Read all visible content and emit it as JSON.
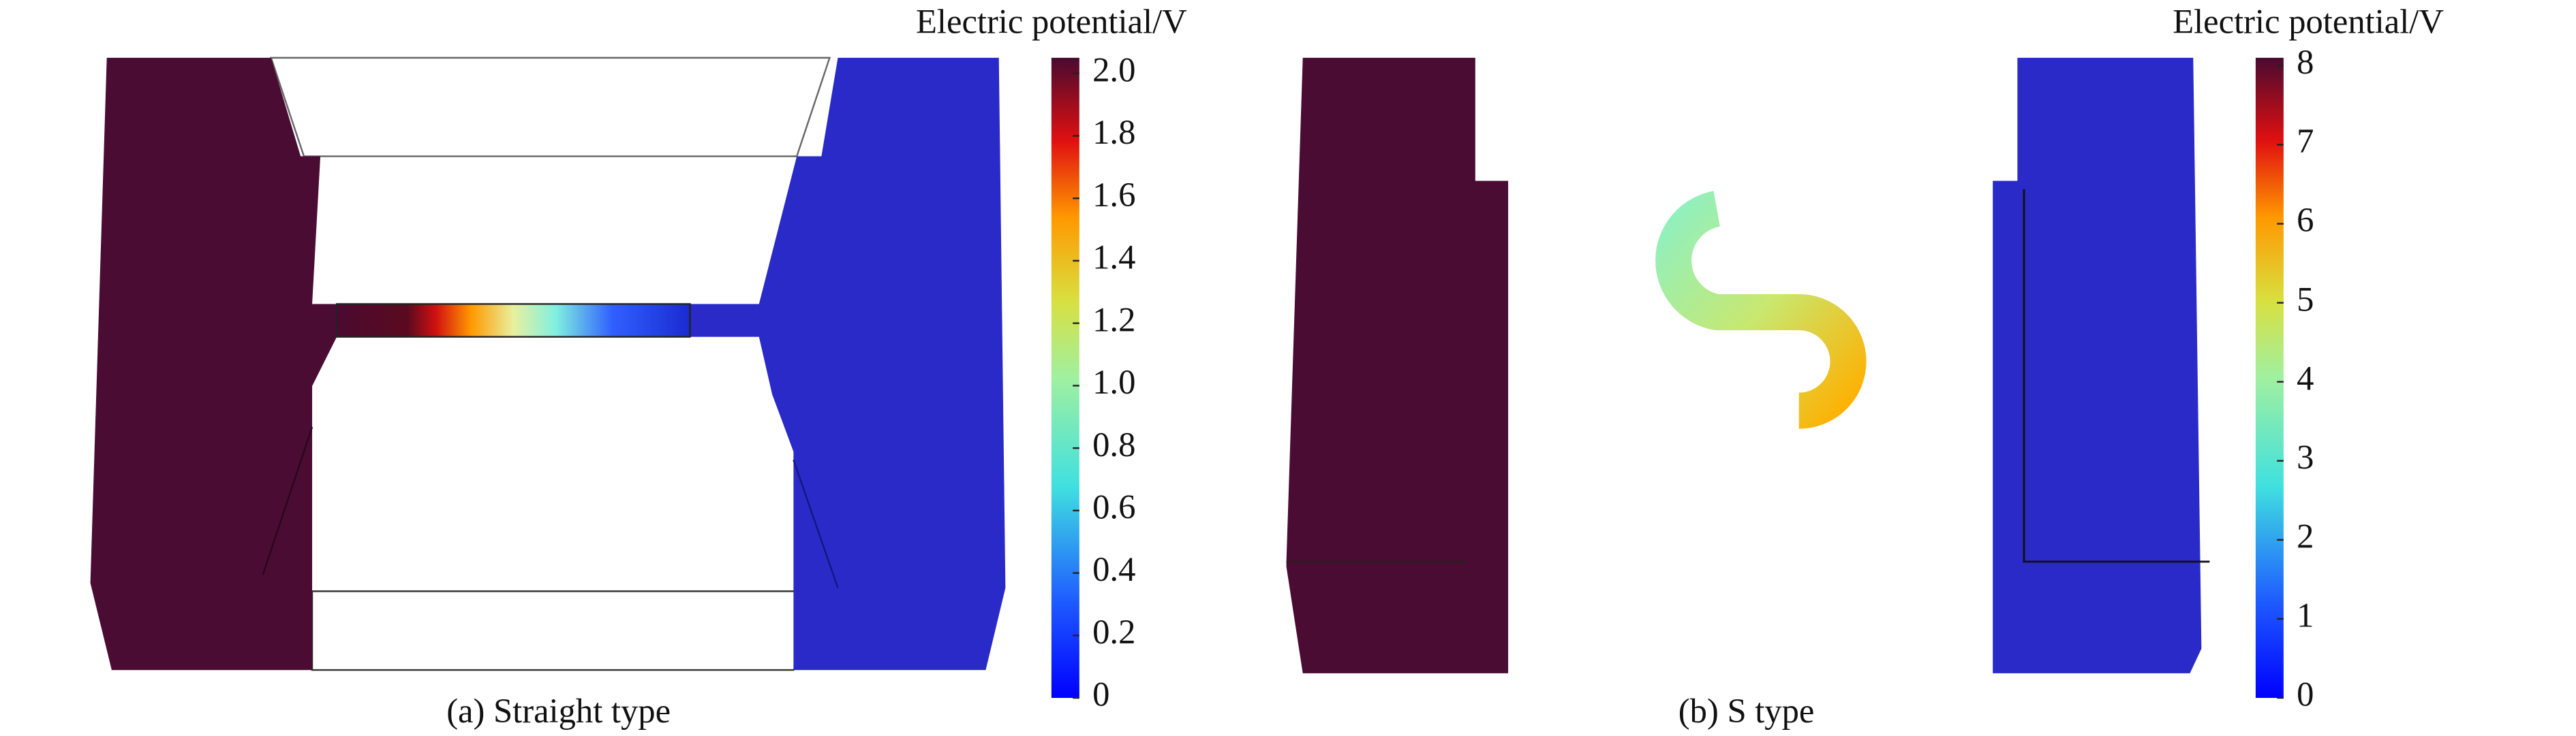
{
  "panels": [
    {
      "caption": "(a) Straight type",
      "colorbar": {
        "title": "Electric potential/V",
        "lim": [
          0,
          2.05
        ],
        "ticks": [
          0,
          0.2,
          0.4,
          0.6,
          0.8,
          {
            "value": 1,
            "label": "1.0"
          },
          1.2,
          1.4,
          1.6,
          1.8,
          {
            "value": 2,
            "label": "2.0"
          }
        ]
      }
    },
    {
      "caption": "(b) S type",
      "colorbar": {
        "title": "Electric potential/V",
        "lim": [
          0,
          8.1
        ],
        "ticks": [
          0,
          1,
          2,
          3,
          4,
          5,
          6,
          7,
          8
        ]
      }
    }
  ]
}
